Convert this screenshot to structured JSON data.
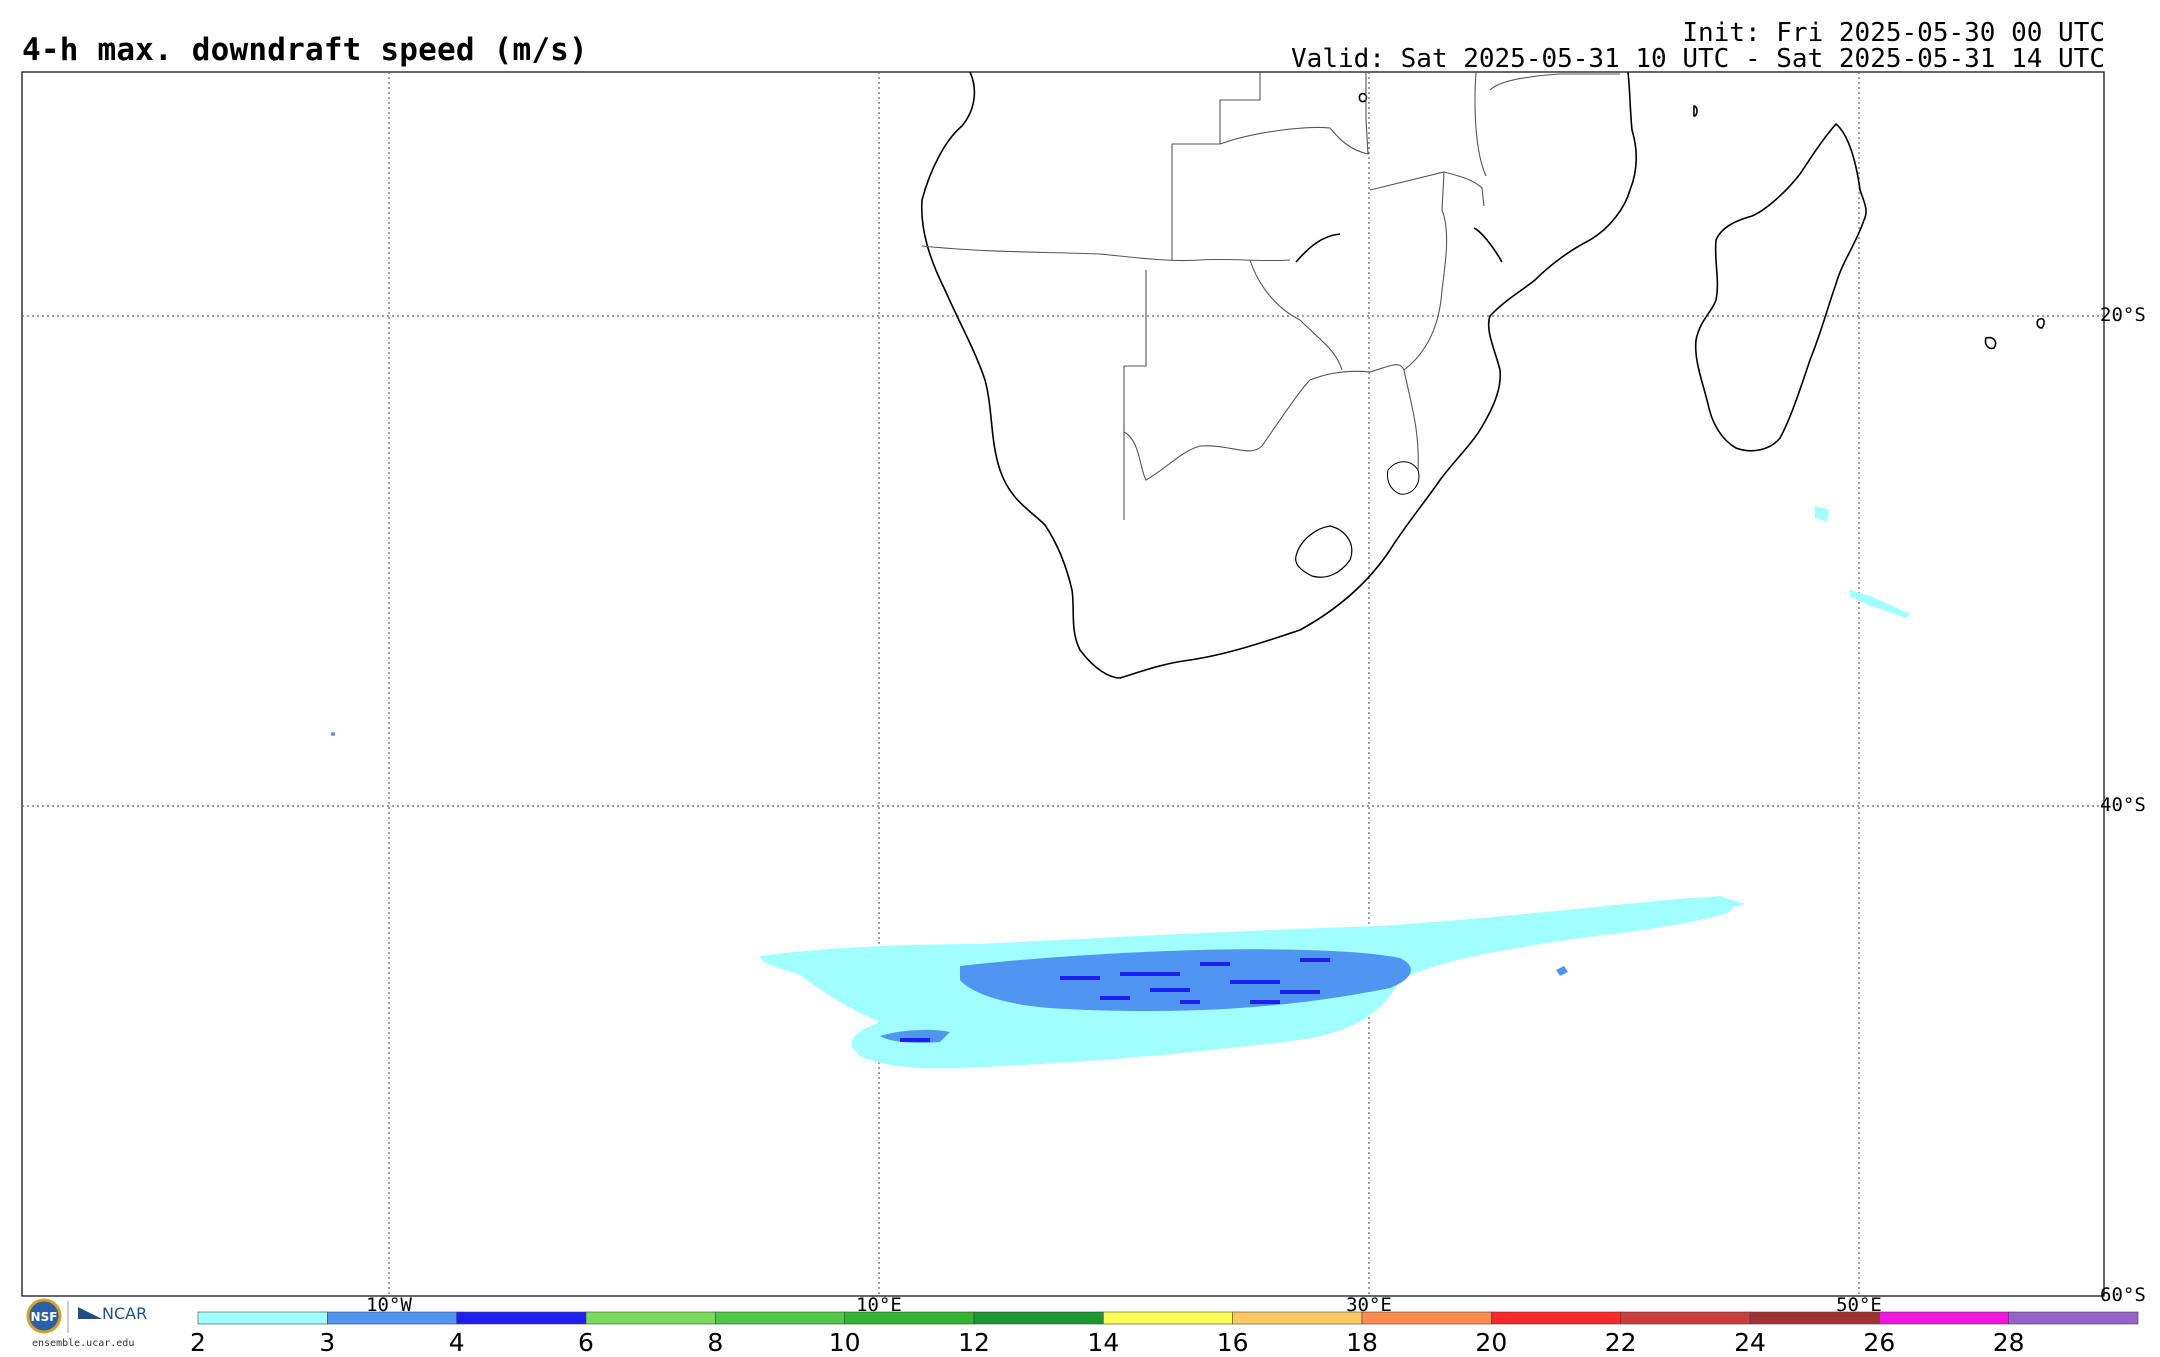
{
  "header": {
    "title": "4-h max. downdraft speed (m/s)",
    "init": "Init: Fri 2025-05-30 00 UTC",
    "valid": "Valid: Sat 2025-05-31 10 UTC - Sat 2025-05-31 14 UTC"
  },
  "map": {
    "lat_labels": [
      "20°S",
      "40°S",
      "60°S"
    ],
    "lon_labels": [
      "10°W",
      "10°E",
      "30°E",
      "50°E"
    ],
    "region": "Southern Africa and South Atlantic / SW Indian Ocean",
    "grid_lines": "dotted",
    "colors": {
      "land_outline": "#000000",
      "country_borders": "#555555",
      "background": "#ffffff"
    }
  },
  "colorbar": {
    "labels": [
      "2",
      "3",
      "4",
      "6",
      "8",
      "10",
      "12",
      "14",
      "16",
      "18",
      "20",
      "22",
      "24",
      "26",
      "28"
    ],
    "colors": [
      "#a0ffff",
      "#5096f0",
      "#1e1ef0",
      "#78dc5a",
      "#50c846",
      "#32b432",
      "#1e9632",
      "#ffff5a",
      "#ffc864",
      "#ff8c50",
      "#fa2828",
      "#c83c3c",
      "#a03232",
      "#f014dc",
      "#9664c8"
    ]
  },
  "logo": {
    "nsf": "NSF",
    "ncar": "NCAR",
    "url": "ensemble.ucar.edu"
  }
}
